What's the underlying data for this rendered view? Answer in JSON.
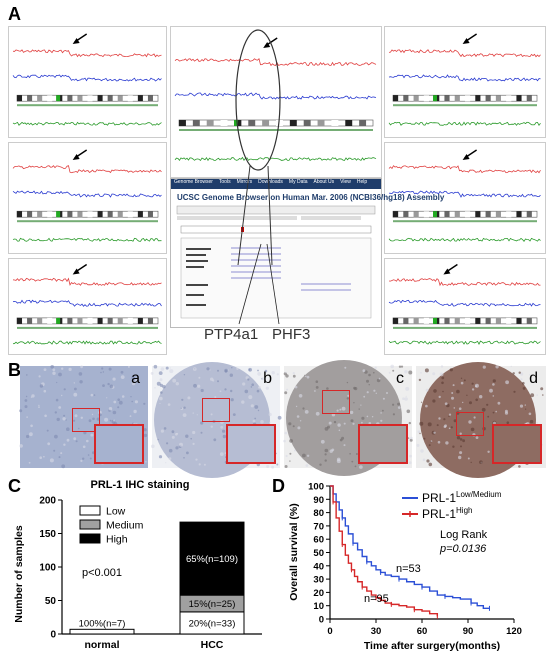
{
  "panel_labels": {
    "a": "A",
    "b": "B",
    "c": "C",
    "d": "D"
  },
  "panel_a": {
    "ucsc_nav": [
      "Genome Browser",
      "Tools",
      "Mirrors",
      "Downloads",
      "My Data",
      "About Us",
      "View",
      "Help"
    ],
    "ucsc_title": "UCSC Genome Browser on Human Mar. 2006 (NCBI36/hg18) Assembly",
    "gene_left": "PTP4a1",
    "gene_right": "PHF3"
  },
  "panel_b": {
    "cores": [
      "a",
      "b",
      "c",
      "d"
    ],
    "colors": {
      "a": "#a6b2cf",
      "b": "#b6bdd3",
      "c": "#a29e9e",
      "d": "#8e6c62"
    }
  },
  "chart_data": [
    {
      "type": "bar",
      "title": "PRL-1 IHC staining",
      "ylabel": "Number of samples",
      "categories": [
        "normal",
        "HCC"
      ],
      "ylim": [
        0,
        200
      ],
      "yticks": [
        0,
        50,
        100,
        150,
        200
      ],
      "series": [
        {
          "name": "Low",
          "color": "#ffffff",
          "values": [
            7,
            33
          ],
          "labels": [
            "100%(n=7)",
            "20%(n=33)"
          ]
        },
        {
          "name": "Medium",
          "color": "#a0a0a0",
          "values": [
            0,
            25
          ],
          "labels": [
            "",
            "15%(n=25)"
          ]
        },
        {
          "name": "High",
          "color": "#000000",
          "values": [
            0,
            109
          ],
          "labels": [
            "",
            "65%(n=109)"
          ]
        }
      ],
      "annotation": "p<0.001",
      "legend": "top-left"
    },
    {
      "type": "line",
      "xlabel": "Time after surgery(months)",
      "ylabel": "Overall survival (%)",
      "xlim": [
        0,
        120
      ],
      "ylim": [
        0,
        100
      ],
      "xticks": [
        0,
        30,
        60,
        90,
        120
      ],
      "yticks": [
        0,
        10,
        20,
        30,
        40,
        50,
        60,
        70,
        80,
        90,
        100
      ],
      "legend": "top-right",
      "annotations": [
        "Log Rank",
        "p=0.0136",
        "n=53",
        "n=95"
      ],
      "series": [
        {
          "name": "PRL-1",
          "name_sup": "Low/Medium",
          "color": "#2b4fd6",
          "x": [
            0,
            2,
            4,
            6,
            8,
            10,
            12,
            15,
            18,
            21,
            24,
            27,
            30,
            33,
            36,
            40,
            45,
            50,
            55,
            60,
            65,
            70,
            75,
            80,
            85,
            92,
            96,
            100,
            104
          ],
          "y": [
            100,
            94,
            88,
            82,
            76,
            70,
            64,
            57,
            52,
            47,
            43,
            40,
            37,
            35,
            33,
            32,
            30,
            28,
            26,
            24,
            21,
            18,
            17,
            16,
            15,
            12,
            10,
            8,
            8
          ]
        },
        {
          "name": "PRL-1",
          "name_sup": "High",
          "color": "#d62728",
          "x": [
            0,
            2,
            4,
            6,
            8,
            10,
            12,
            14,
            16,
            18,
            21,
            24,
            27,
            30,
            33,
            36,
            40,
            45,
            50,
            55,
            60,
            65,
            70
          ],
          "y": [
            100,
            88,
            76,
            66,
            56,
            48,
            42,
            37,
            32,
            28,
            24,
            21,
            18,
            16,
            14,
            12,
            11,
            10,
            9,
            7,
            6,
            4,
            2
          ]
        }
      ]
    }
  ]
}
